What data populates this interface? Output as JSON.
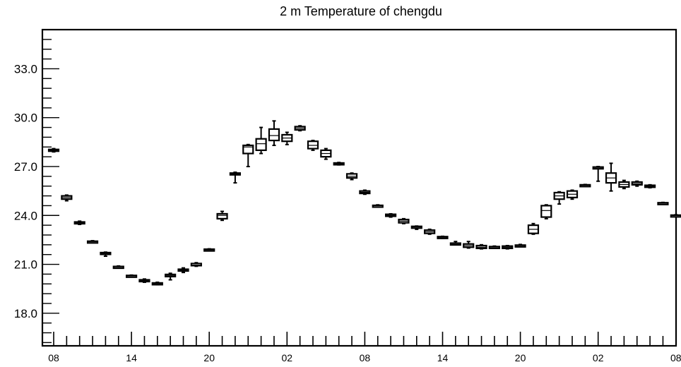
{
  "chart_data": {
    "type": "box",
    "title": "2 m Temperature of chengdu",
    "xlabel": "",
    "ylabel": "",
    "ylim": [
      16.0,
      35.4
    ],
    "yticks_labeled": [
      "18.0",
      "21.0",
      "24.0",
      "27.0",
      "30.0",
      "33.0"
    ],
    "yminor_step": 0.6,
    "x_tick_labels": [
      "08",
      "14",
      "20",
      "02",
      "08",
      "14",
      "20",
      "02",
      "08"
    ],
    "x_labeled_every": 6,
    "grid": false,
    "boxes": [
      {
        "t": 0,
        "low": 27.9,
        "q1": 27.95,
        "med": 28.0,
        "q3": 28.05,
        "high": 28.1
      },
      {
        "t": 1,
        "low": 24.9,
        "q1": 25.0,
        "med": 25.1,
        "q3": 25.2,
        "high": 25.25
      },
      {
        "t": 2,
        "low": 23.45,
        "q1": 23.5,
        "med": 23.55,
        "q3": 23.6,
        "high": 23.65
      },
      {
        "t": 3,
        "low": 22.35,
        "q1": 22.38,
        "med": 22.4,
        "q3": 22.42,
        "high": 22.45
      },
      {
        "t": 4,
        "low": 21.5,
        "q1": 21.62,
        "med": 21.68,
        "q3": 21.72,
        "high": 21.75
      },
      {
        "t": 5,
        "low": 20.8,
        "q1": 20.83,
        "med": 20.85,
        "q3": 20.87,
        "high": 20.9
      },
      {
        "t": 6,
        "low": 20.26,
        "q1": 20.28,
        "med": 20.3,
        "q3": 20.32,
        "high": 20.34
      },
      {
        "t": 7,
        "low": 19.9,
        "q1": 19.95,
        "med": 20.0,
        "q3": 20.05,
        "high": 20.1
      },
      {
        "t": 8,
        "low": 19.75,
        "q1": 19.8,
        "med": 19.82,
        "q3": 19.86,
        "high": 19.9
      },
      {
        "t": 9,
        "low": 20.05,
        "q1": 20.25,
        "med": 20.3,
        "q3": 20.38,
        "high": 20.45
      },
      {
        "t": 10,
        "low": 20.5,
        "q1": 20.6,
        "med": 20.65,
        "q3": 20.7,
        "high": 20.78
      },
      {
        "t": 11,
        "low": 20.88,
        "q1": 20.92,
        "med": 20.95,
        "q3": 21.05,
        "high": 21.1
      },
      {
        "t": 12,
        "low": 21.85,
        "q1": 21.88,
        "med": 21.9,
        "q3": 21.93,
        "high": 21.95
      },
      {
        "t": 13,
        "low": 23.7,
        "q1": 23.8,
        "med": 24.0,
        "q3": 24.1,
        "high": 24.25
      },
      {
        "t": 14,
        "low": 26.0,
        "q1": 26.5,
        "med": 26.55,
        "q3": 26.6,
        "high": 26.65
      },
      {
        "t": 15,
        "low": 27.0,
        "q1": 27.8,
        "med": 28.2,
        "q3": 28.3,
        "high": 28.35
      },
      {
        "t": 16,
        "low": 27.8,
        "q1": 28.0,
        "med": 28.4,
        "q3": 28.7,
        "high": 29.4
      },
      {
        "t": 17,
        "low": 28.3,
        "q1": 28.6,
        "med": 28.9,
        "q3": 29.3,
        "high": 29.8
      },
      {
        "t": 18,
        "low": 28.35,
        "q1": 28.55,
        "med": 28.75,
        "q3": 28.95,
        "high": 29.1
      },
      {
        "t": 19,
        "low": 29.2,
        "q1": 29.25,
        "med": 29.35,
        "q3": 29.45,
        "high": 29.5
      },
      {
        "t": 20,
        "low": 28.0,
        "q1": 28.1,
        "med": 28.3,
        "q3": 28.55,
        "high": 28.6
      },
      {
        "t": 21,
        "low": 27.45,
        "q1": 27.6,
        "med": 27.8,
        "q3": 28.0,
        "high": 28.1
      },
      {
        "t": 22,
        "low": 27.1,
        "q1": 27.12,
        "med": 27.15,
        "q3": 27.22,
        "high": 27.25
      },
      {
        "t": 23,
        "low": 26.2,
        "q1": 26.3,
        "med": 26.4,
        "q3": 26.55,
        "high": 26.6
      },
      {
        "t": 24,
        "low": 25.3,
        "q1": 25.35,
        "med": 25.42,
        "q3": 25.5,
        "high": 25.55
      },
      {
        "t": 25,
        "low": 24.55,
        "q1": 24.58,
        "med": 24.6,
        "q3": 24.62,
        "high": 24.65
      },
      {
        "t": 26,
        "low": 23.9,
        "q1": 23.95,
        "med": 24.0,
        "q3": 24.07,
        "high": 24.1
      },
      {
        "t": 27,
        "low": 23.5,
        "q1": 23.55,
        "med": 23.65,
        "q3": 23.75,
        "high": 23.8
      },
      {
        "t": 28,
        "low": 23.15,
        "q1": 23.25,
        "med": 23.3,
        "q3": 23.33,
        "high": 23.35
      },
      {
        "t": 29,
        "low": 22.85,
        "q1": 22.9,
        "med": 23.0,
        "q3": 23.1,
        "high": 23.15
      },
      {
        "t": 30,
        "low": 22.6,
        "q1": 22.63,
        "med": 22.66,
        "q3": 22.7,
        "high": 22.72
      },
      {
        "t": 31,
        "low": 22.2,
        "q1": 22.23,
        "med": 22.27,
        "q3": 22.3,
        "high": 22.4
      },
      {
        "t": 32,
        "low": 22.0,
        "q1": 22.05,
        "med": 22.15,
        "q3": 22.25,
        "high": 22.4
      },
      {
        "t": 33,
        "low": 21.95,
        "q1": 21.98,
        "med": 22.05,
        "q3": 22.15,
        "high": 22.2
      },
      {
        "t": 34,
        "low": 22.0,
        "q1": 22.03,
        "med": 22.06,
        "q3": 22.09,
        "high": 22.12
      },
      {
        "t": 35,
        "low": 21.95,
        "q1": 21.98,
        "med": 22.05,
        "q3": 22.12,
        "high": 22.15
      },
      {
        "t": 36,
        "low": 22.1,
        "q1": 22.12,
        "med": 22.15,
        "q3": 22.18,
        "high": 22.22
      },
      {
        "t": 37,
        "low": 22.85,
        "q1": 22.9,
        "med": 23.15,
        "q3": 23.4,
        "high": 23.5
      },
      {
        "t": 38,
        "low": 23.8,
        "q1": 23.9,
        "med": 24.3,
        "q3": 24.6,
        "high": 24.65
      },
      {
        "t": 39,
        "low": 24.7,
        "q1": 25.0,
        "med": 25.2,
        "q3": 25.4,
        "high": 25.45
      },
      {
        "t": 40,
        "low": 25.0,
        "q1": 25.1,
        "med": 25.3,
        "q3": 25.5,
        "high": 25.55
      },
      {
        "t": 41,
        "low": 25.8,
        "q1": 25.82,
        "med": 25.85,
        "q3": 25.88,
        "high": 25.9
      },
      {
        "t": 42,
        "low": 26.1,
        "q1": 26.9,
        "med": 26.95,
        "q3": 26.97,
        "high": 27.0
      },
      {
        "t": 43,
        "low": 25.5,
        "q1": 26.0,
        "med": 26.3,
        "q3": 26.6,
        "high": 27.2
      },
      {
        "t": 44,
        "low": 25.65,
        "q1": 25.75,
        "med": 25.9,
        "q3": 26.05,
        "high": 26.15
      },
      {
        "t": 45,
        "low": 25.8,
        "q1": 25.88,
        "med": 25.95,
        "q3": 26.05,
        "high": 26.1
      },
      {
        "t": 46,
        "low": 25.7,
        "q1": 25.73,
        "med": 25.78,
        "q3": 25.85,
        "high": 25.88
      },
      {
        "t": 47,
        "low": 24.72,
        "q1": 24.74,
        "med": 24.76,
        "q3": 24.78,
        "high": 24.8
      },
      {
        "t": 48,
        "low": 23.95,
        "q1": 23.97,
        "med": 24.0,
        "q3": 24.02,
        "high": 24.04
      }
    ]
  }
}
